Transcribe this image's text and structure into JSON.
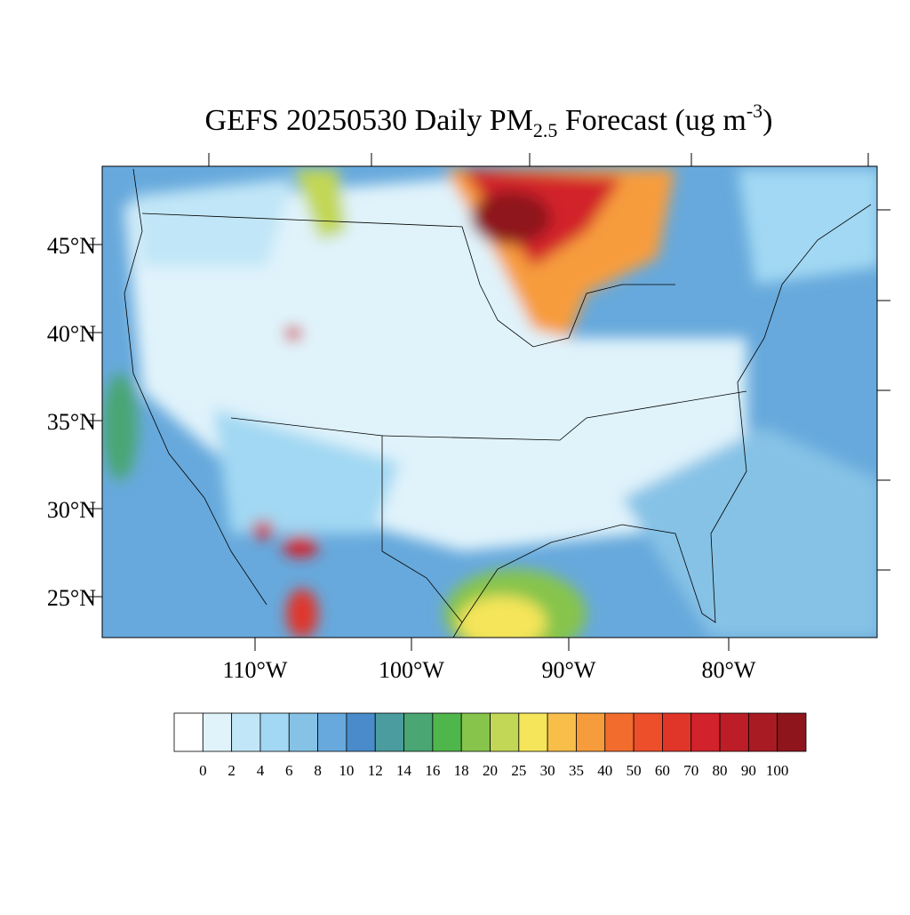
{
  "title": {
    "lead": "GEFS 20250530 Daily PM",
    "subscript": "2.5",
    "middle": " Forecast (ug m",
    "superscript": "-3",
    "tail": ")"
  },
  "map": {
    "lat_labels": [
      "45°N",
      "40°N",
      "35°N",
      "30°N",
      "25°N"
    ],
    "lon_labels": [
      "110°W",
      "100°W",
      "90°W",
      "80°W"
    ]
  },
  "colorbar": {
    "labels": [
      0,
      2,
      4,
      6,
      8,
      10,
      12,
      14,
      16,
      18,
      20,
      25,
      30,
      35,
      40,
      50,
      60,
      70,
      80,
      90,
      100
    ],
    "colors": [
      "#ffffff",
      "#e0f3fb",
      "#c1e6f7",
      "#a2d8f3",
      "#86c2e6",
      "#67a9dc",
      "#4a8ccb",
      "#4b9c9e",
      "#4aa673",
      "#4fb64b",
      "#86c44c",
      "#c2d755",
      "#f5e55a",
      "#f8be4a",
      "#f79c3d",
      "#f26c2e",
      "#ec4f2a",
      "#e0362a",
      "#d2222b",
      "#bc1d26",
      "#a91b22",
      "#8e151c"
    ]
  }
}
